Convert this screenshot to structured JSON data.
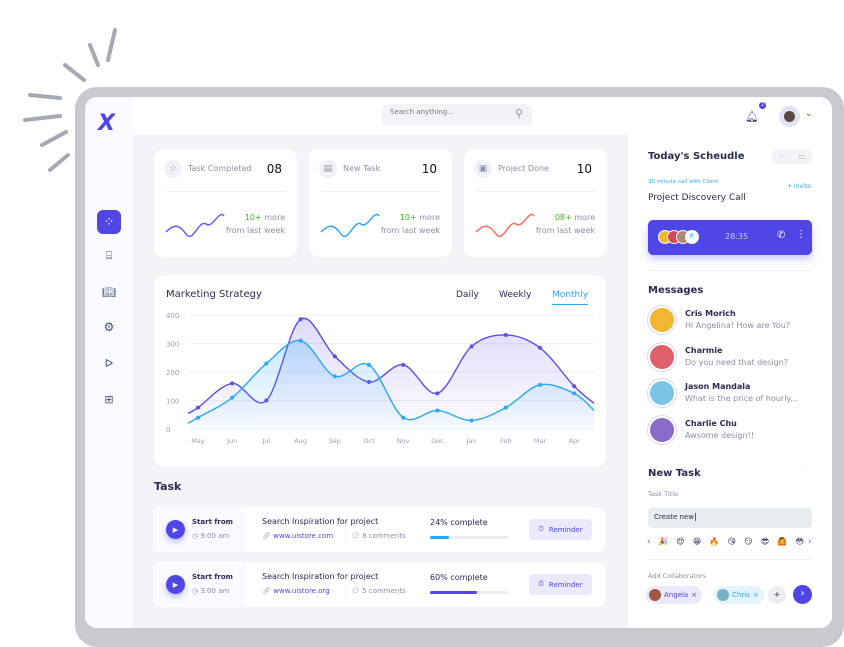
{
  "colors": {
    "accent": "#4f46e5",
    "blue": "#2aa8f8",
    "red": "#ff6b5a",
    "green": "#3cb521"
  },
  "sidebar": {
    "logo": "X",
    "items": [
      {
        "icon": "grid-icon",
        "active": true
      },
      {
        "icon": "align-icon"
      },
      {
        "icon": "book-icon"
      },
      {
        "icon": "gear-icon"
      },
      {
        "icon": "send-icon"
      },
      {
        "icon": "folder-add-icon"
      }
    ]
  },
  "header": {
    "search_placeholder": "Search anything...",
    "notification_count": "2"
  },
  "stats": [
    {
      "label": "Task Completed",
      "value": "08",
      "delta": "10+",
      "more": "more",
      "sub": "from last week",
      "color": "#6a5cf0",
      "icon": "star-icon",
      "glyph": "☆"
    },
    {
      "label": "New Task",
      "value": "10",
      "delta": "10+",
      "more": "more",
      "sub": "from last week",
      "color": "#2aa8f8",
      "icon": "document-icon",
      "glyph": "▤"
    },
    {
      "label": "Project Done",
      "value": "10",
      "delta": "08+",
      "more": "more",
      "sub": "from last week",
      "color": "#ff6b5a",
      "icon": "clipboard-icon",
      "glyph": "▣"
    }
  ],
  "marketing": {
    "title": "Marketing Strategy",
    "tabs": [
      "Daily",
      "Weekly",
      "Monthly"
    ],
    "active_tab": "Monthly"
  },
  "chart_data": {
    "type": "area",
    "categories": [
      "May",
      "Jun",
      "Jul",
      "Aug",
      "Sep",
      "Oct",
      "Nov",
      "Dec",
      "Jan",
      "Feb",
      "Mar",
      "Apr"
    ],
    "ylim": [
      0,
      400
    ],
    "yticks": [
      0,
      100,
      200,
      300,
      400
    ],
    "grid": true,
    "series": [
      {
        "values": [
          75,
          160,
          100,
          385,
          255,
          165,
          225,
          125,
          290,
          330,
          285,
          150
        ],
        "color": "#5b4ee8"
      },
      {
        "values": [
          40,
          110,
          230,
          310,
          185,
          225,
          40,
          65,
          30,
          75,
          155,
          125
        ],
        "color": "#2aa8f8"
      }
    ]
  },
  "tasks": {
    "title": "Task",
    "items": [
      {
        "start_label": "Start from",
        "time": "9.00 am",
        "title": "Search Inspiration for project",
        "link": "www.uistore.com",
        "comments": "8 comments",
        "progress_label": "24% complete",
        "progress": 24,
        "bar_color": "#2aa8f8",
        "reminder": "Reminder"
      },
      {
        "start_label": "Start from",
        "time": "3.00 am",
        "title": "Search Inspiration for project",
        "link": "www.uistore.org",
        "comments": "5 comments",
        "progress_label": "60% complete",
        "progress": 60,
        "bar_color": "#4f46e5",
        "reminder": "Reminder"
      }
    ]
  },
  "schedule": {
    "title": "Today's Scheudle",
    "subtitle": "30 minute call with Client",
    "invite": "+ Invite",
    "call_title": "Project Discovery Call",
    "participant_initial": "R",
    "timer": "28:35"
  },
  "messages": {
    "title": "Messages",
    "items": [
      {
        "name": "Cris Morich",
        "text": "Hi Angelina! How are You?",
        "color": "#f2b630"
      },
      {
        "name": "Charmie",
        "text": "Do you need that design?",
        "color": "#e0606a"
      },
      {
        "name": "Jason Mandala",
        "text": "What is the price of hourly...",
        "color": "#7cc4e8"
      },
      {
        "name": "Charlie Chu",
        "text": "Awsome design!!",
        "color": "#8a6cc8"
      }
    ]
  },
  "new_task": {
    "title": "New Task",
    "field_label": "Task Title",
    "field_value": "Create new",
    "emojis": [
      "🎉",
      "😍",
      "😁",
      "🔥",
      "😘",
      "😏",
      "😎",
      "🙆",
      "😳"
    ],
    "collab_label": "Add Collaborators",
    "collaborators": [
      {
        "name": "Angela"
      },
      {
        "name": "Chris"
      }
    ],
    "add": "+"
  }
}
